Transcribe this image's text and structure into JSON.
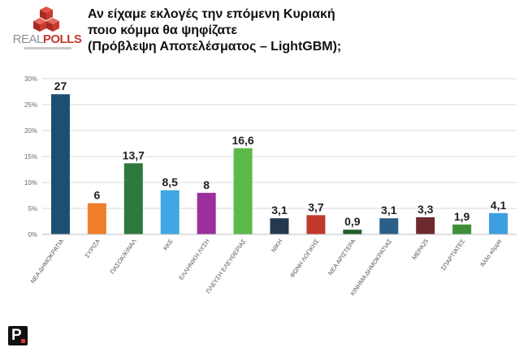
{
  "brand": {
    "logo_name": "REALPOLLS",
    "logo_part1": "REAL",
    "logo_part2": "POLLS"
  },
  "title_lines": [
    "Αν είχαμε εκλογές την επόμενη Κυριακή",
    "ποιο κόμμα θα ψηφίζατε",
    "(Πρόβλεψη Αποτελέσματος – LightGBM);"
  ],
  "chart_data": {
    "type": "bar",
    "title": "Αν είχαμε εκλογές την επόμενη Κυριακή ποιο κόμμα θα ψηφίζατε (Πρόβλεψη Αποτελέσματος – LightGBM);",
    "categories": [
      "ΝΕΑ ΔΗΜΟΚΡΑΤΙΑ",
      "ΣΥΡΙΖΑ",
      "ΠΑΣΟΚ/ΚΙΝΑΛ",
      "ΚΚΕ",
      "ΕΛΛΗΝΙΚΗ ΛΥΣΗ",
      "ΠΛΕΥΣΗ ΕΛΕΥΘΕΡΙΑΣ",
      "ΝΙΚΗ",
      "ΦΩΝΗ ΛΟΓΙΚΗΣ",
      "ΝΕΑ ΑΡΙΣΤΕΡΑ",
      "ΚΙΝΗΜΑ ΔΗΜΟΚΡΑΤΙΑΣ",
      "ΜΕΡΑ25",
      "ΣΠΑΡΤΙΑΤΕΣ",
      "Άλλο κόμμα"
    ],
    "values": [
      27,
      6,
      13.7,
      8.5,
      8,
      16.6,
      3.1,
      3.7,
      0.9,
      3.1,
      3.3,
      1.9,
      4.1
    ],
    "value_labels": [
      "27",
      "6",
      "13,7",
      "8,5",
      "8",
      "16,6",
      "3,1",
      "3,7",
      "0,9",
      "3,1",
      "3,3",
      "1,9",
      "4,1"
    ],
    "colors": [
      "#1d4f73",
      "#f07f2c",
      "#2e7a3c",
      "#3ea7e3",
      "#9b2f9c",
      "#5cb949",
      "#24394e",
      "#c0392b",
      "#1f5e2c",
      "#2b5f88",
      "#6d2a2e",
      "#3f8f3a",
      "#3d9ee0"
    ],
    "ylim": [
      0,
      30
    ],
    "yticks": [
      0,
      5,
      10,
      15,
      20,
      25,
      30
    ],
    "ytick_labels": [
      "0%",
      "5%",
      "10%",
      "15%",
      "20%",
      "25%",
      "30%"
    ],
    "grid": true,
    "xlabel": "",
    "ylabel": ""
  }
}
